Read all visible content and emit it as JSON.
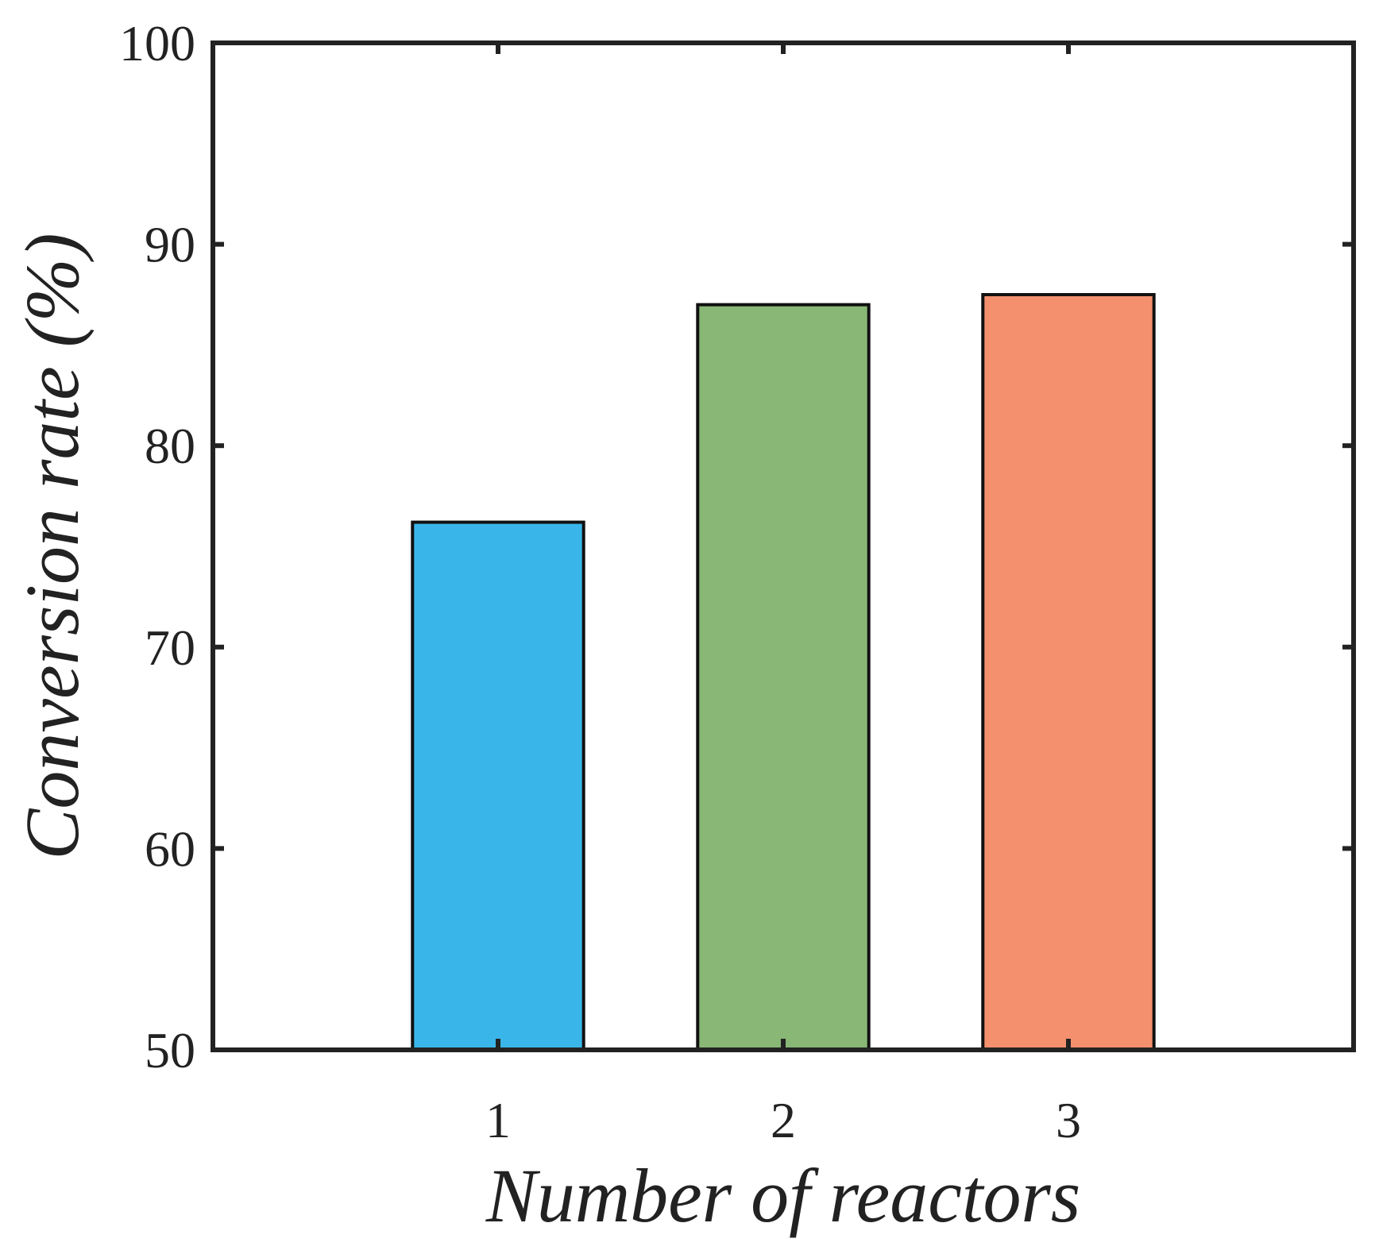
{
  "chart_data": {
    "type": "bar",
    "categories": [
      "1",
      "2",
      "3"
    ],
    "values": [
      76.2,
      87.0,
      87.5
    ],
    "colors": [
      "#3AB5E9",
      "#88B776",
      "#F4906E"
    ],
    "title": "",
    "xlabel": "Number of reactors",
    "ylabel": "Conversion rate (%)",
    "xlim": [
      0,
      4
    ],
    "ylim": [
      50,
      100
    ],
    "yticks": [
      50,
      60,
      70,
      80,
      90,
      100
    ],
    "grid": false,
    "legend": "none"
  }
}
